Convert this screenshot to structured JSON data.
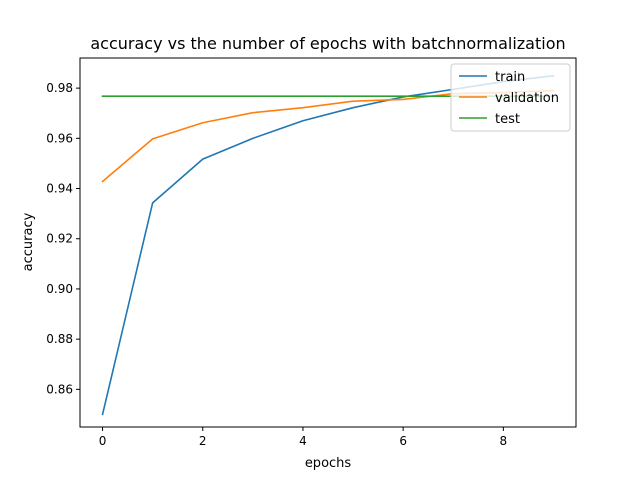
{
  "chart_data": {
    "type": "line",
    "title": "accuracy vs the number of epochs with batchnormalization",
    "xlabel": "epochs",
    "ylabel": "accuracy",
    "xlim": [
      -0.45,
      9.45
    ],
    "ylim": [
      0.845,
      0.992
    ],
    "xticks": [
      0,
      2,
      4,
      6,
      8
    ],
    "xtick_labels": [
      "0",
      "2",
      "4",
      "6",
      "8"
    ],
    "yticks": [
      0.86,
      0.88,
      0.9,
      0.92,
      0.94,
      0.96,
      0.98
    ],
    "ytick_labels": [
      "0.86",
      "0.88",
      "0.90",
      "0.92",
      "0.94",
      "0.96",
      "0.98"
    ],
    "grid": false,
    "legend_position": "top-right",
    "x": [
      0,
      1,
      2,
      3,
      4,
      5,
      6,
      7,
      8,
      9
    ],
    "series": [
      {
        "name": "train",
        "color": "#1f77b4",
        "values": [
          0.85,
          0.9343,
          0.9517,
          0.96,
          0.967,
          0.9722,
          0.9765,
          0.9795,
          0.9826,
          0.9849
        ]
      },
      {
        "name": "validation",
        "color": "#ff7f0e",
        "values": [
          0.9428,
          0.9598,
          0.9662,
          0.9702,
          0.9722,
          0.9748,
          0.9755,
          0.9778,
          0.9782,
          0.979
        ]
      },
      {
        "name": "test",
        "color": "#2ca02c",
        "values": [
          0.9768,
          0.9768,
          0.9768,
          0.9768,
          0.9768,
          0.9768,
          0.9768,
          0.9768,
          0.9768,
          0.9768
        ]
      }
    ]
  }
}
